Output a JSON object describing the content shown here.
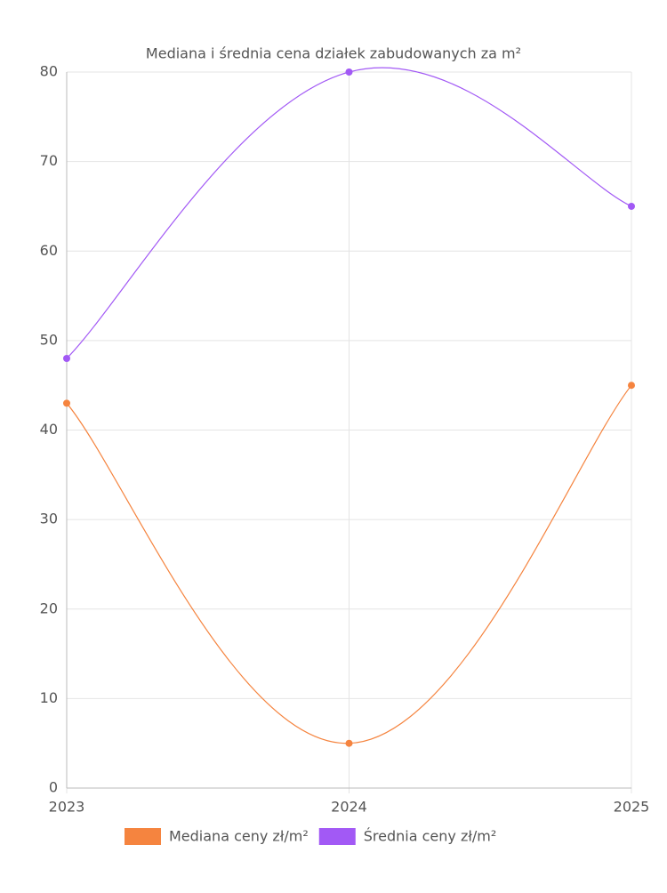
{
  "chart_data": {
    "type": "line",
    "title": "Mediana i średnia cena działek zabudowanych za m²",
    "categories": [
      "2023",
      "2024",
      "2025"
    ],
    "series": [
      {
        "name": "Mediana ceny zł/m²",
        "color": "#f5843f",
        "values": [
          43,
          5,
          45
        ]
      },
      {
        "name": "Średnia ceny zł/m²",
        "color": "#a259f5",
        "values": [
          48,
          80,
          65
        ]
      }
    ],
    "ylim": [
      0,
      80
    ],
    "yticks": [
      0,
      10,
      20,
      30,
      40,
      50,
      60,
      70,
      80
    ],
    "grid": true,
    "legend": "bottom"
  }
}
